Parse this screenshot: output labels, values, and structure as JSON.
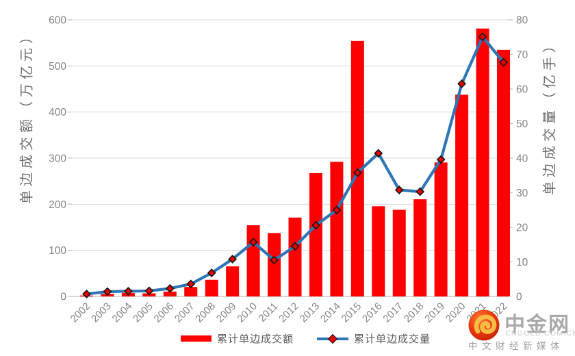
{
  "chart_data": {
    "type": "bar",
    "subtype": "bar-line-combo",
    "categories": [
      "2002",
      "2003",
      "2004",
      "2005",
      "2006",
      "2007",
      "2008",
      "2009",
      "2010",
      "2011",
      "2012",
      "2013",
      "2014",
      "2015",
      "2016",
      "2017",
      "2018",
      "2019",
      "2020",
      "2021",
      "2022"
    ],
    "series": [
      {
        "name": "累计单边成交额",
        "type": "bar",
        "axis": "left",
        "color": "#ff0000",
        "values": [
          2.0,
          5.4,
          7.3,
          6.7,
          10.5,
          20.5,
          36.0,
          65.2,
          154.4,
          137.5,
          171.1,
          267.5,
          292.0,
          554.2,
          195.6,
          187.9,
          210.8,
          290.6,
          437.5,
          581.2,
          534.9
        ]
      },
      {
        "name": "累计单边成交量",
        "type": "line",
        "axis": "right",
        "color": "#2e75b6",
        "marker": "diamond",
        "marker_fill": "#e60000",
        "marker_stroke": "#141414",
        "values": [
          0.7,
          1.4,
          1.5,
          1.6,
          2.3,
          3.6,
          6.8,
          10.8,
          15.7,
          10.5,
          14.5,
          20.6,
          25.0,
          35.8,
          41.4,
          30.8,
          30.3,
          39.6,
          61.5,
          75.1,
          67.7
        ]
      }
    ],
    "title": "",
    "xlabel": "",
    "left_axis": {
      "title": "单边成交额（万亿元）",
      "min": 0,
      "max": 600,
      "step": 100
    },
    "right_axis": {
      "title": "单边成交量（亿手）",
      "min": 0,
      "max": 80,
      "step": 10
    },
    "grid": true,
    "legend_position": "bottom",
    "tick_color": "#848484",
    "grid_color": "#d9d9d9",
    "axisline_color": "#bfbfbf"
  },
  "axis_titles": {
    "left": "单边成交额（万亿元）",
    "right": "单边成交量（亿手）"
  },
  "legend": {
    "items": [
      {
        "label": "累计单边成交额"
      },
      {
        "label": "累计单边成交量"
      }
    ]
  },
  "logo": {
    "name": "中金网",
    "domain": "CNGOLD.COM.CN",
    "tagline": "中文财经新媒体"
  }
}
